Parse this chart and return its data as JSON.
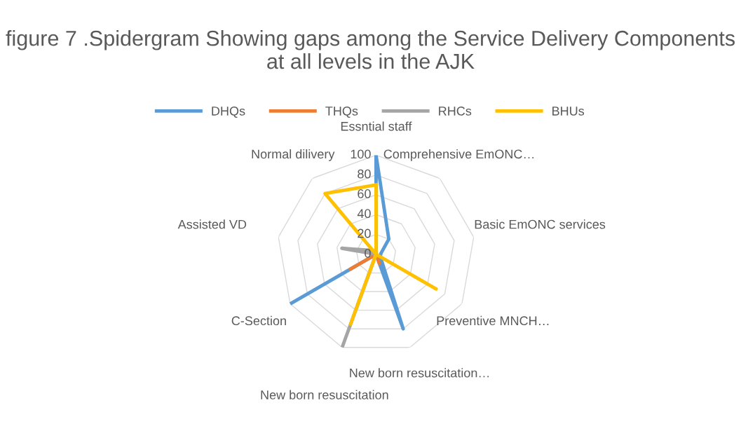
{
  "chart_data": {
    "type": "radar",
    "title": "figure 7 .Spidergram Showing gaps among the Service Delivery Components at all levels in the AJK",
    "categories": [
      "Essntial staff",
      "Comprehensive EmONC…",
      "Basic EmONC services",
      "Preventive MNCH…",
      "New born resuscitation…",
      "New born resuscitation",
      "C-Section",
      "Assisted VD",
      "Normal dilivery"
    ],
    "series": [
      {
        "name": "DHQs",
        "color": "#5b9bd5",
        "values": [
          100,
          20,
          5,
          5,
          80,
          0,
          100,
          0,
          0
        ]
      },
      {
        "name": "THQs",
        "color": "#ed7d31",
        "values": [
          0,
          0,
          0,
          0,
          10,
          0,
          30,
          0,
          0
        ]
      },
      {
        "name": "RHCs",
        "color": "#a5a5a5",
        "values": [
          0,
          0,
          0,
          0,
          0,
          100,
          0,
          35,
          5
        ]
      },
      {
        "name": "BHUs",
        "color": "#ffc000",
        "values": [
          70,
          0,
          0,
          70,
          0,
          75,
          0,
          0,
          80
        ]
      }
    ],
    "ylim": [
      0,
      100
    ],
    "yticks": [
      0,
      20,
      40,
      60,
      80,
      100
    ],
    "grid": true,
    "legend": "top",
    "marker": "none",
    "line_style": "solid"
  }
}
